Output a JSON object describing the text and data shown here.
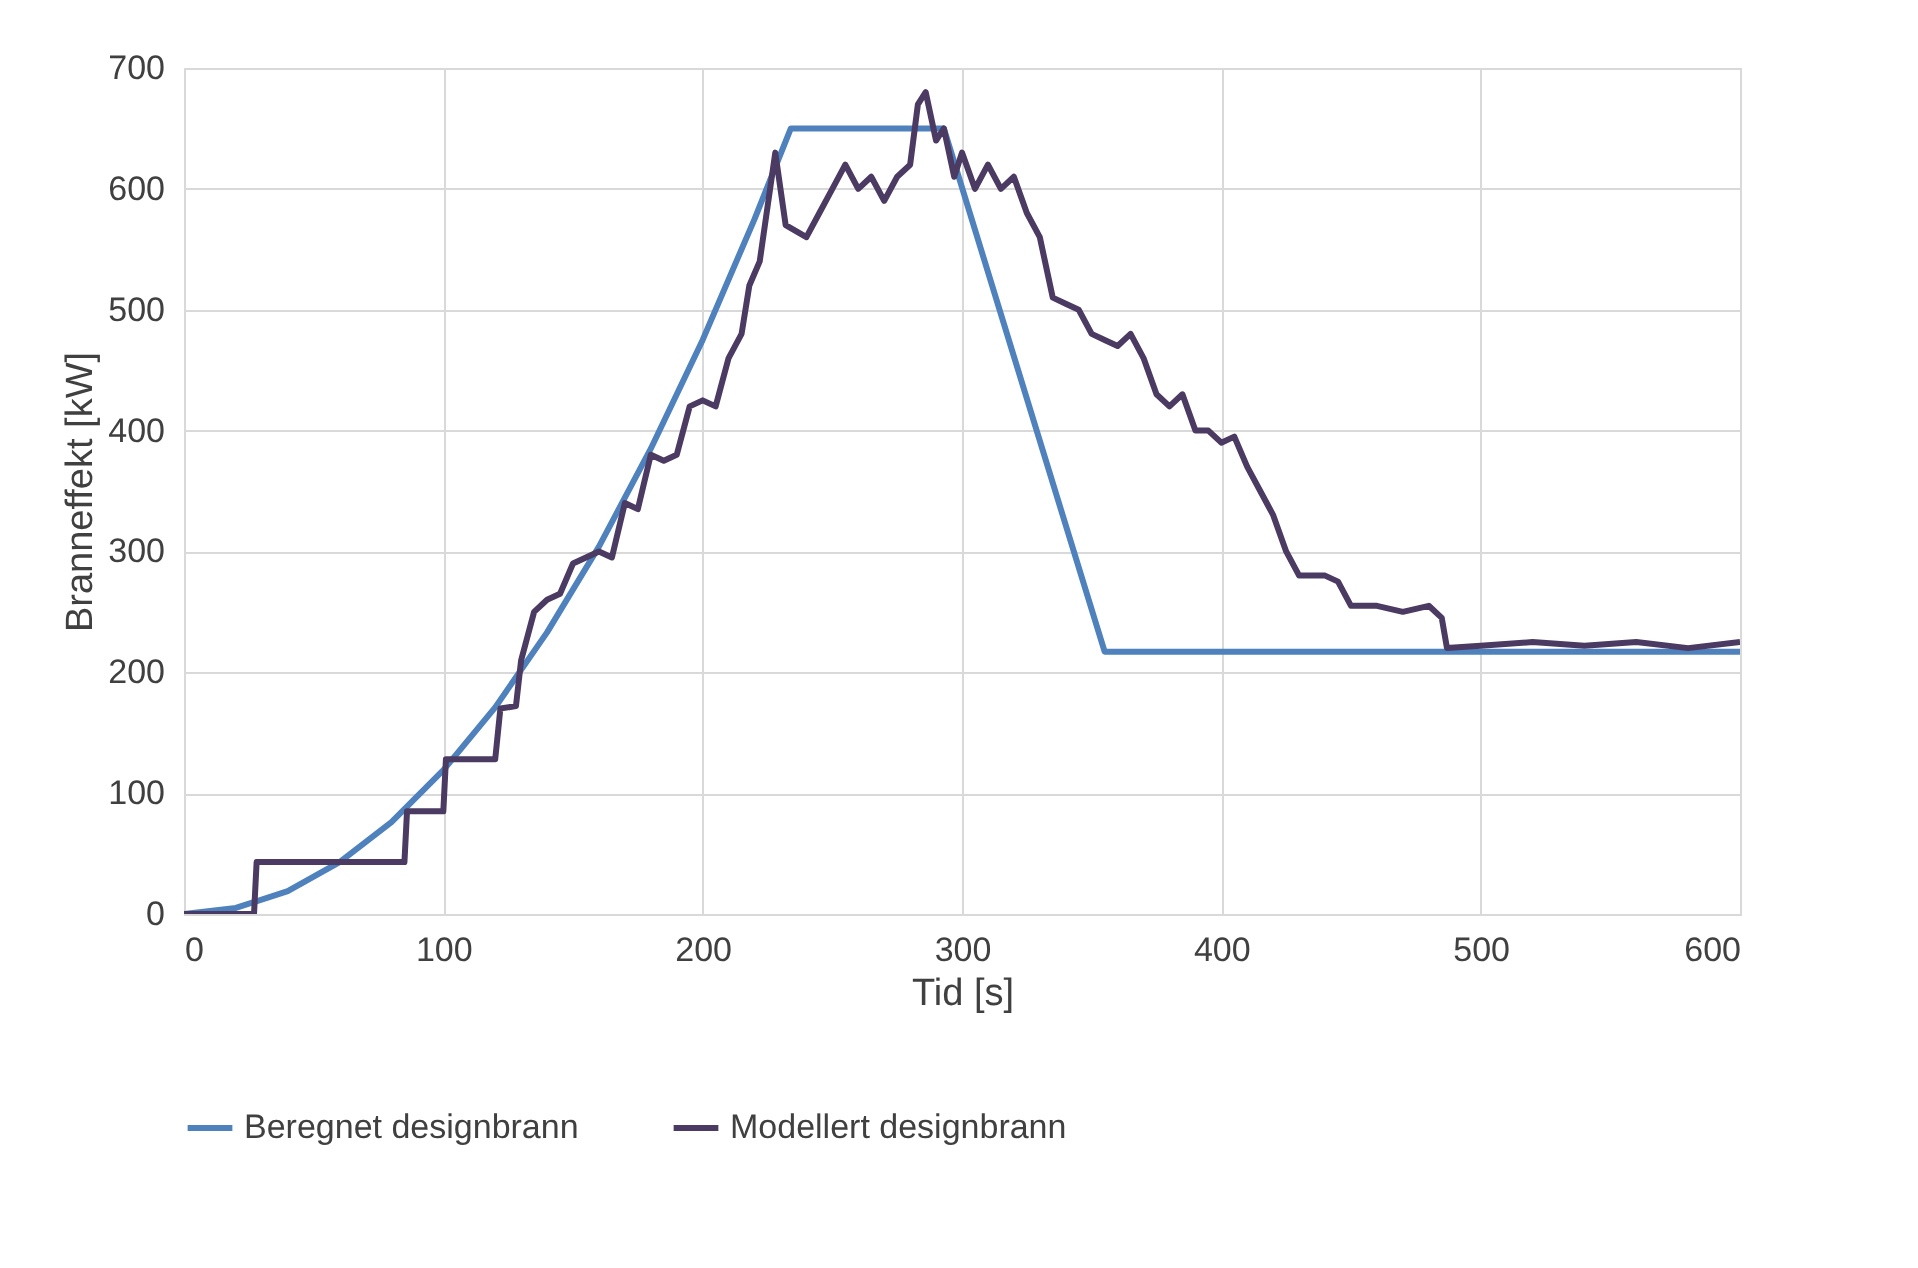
{
  "chart_data": {
    "type": "line",
    "xlabel": "Tid [s]",
    "ylabel": "Branneffekt [kW]",
    "xlim": [
      0,
      600
    ],
    "xticks": [
      0,
      100,
      200,
      300,
      400,
      500,
      600
    ],
    "ylim": [
      0,
      700
    ],
    "yticks": [
      0,
      100,
      200,
      300,
      400,
      500,
      600,
      700
    ],
    "grid": true,
    "legend": "bottom",
    "marker": "none",
    "line_style": "solid",
    "series": [
      {
        "name": "Beregnet designbrann",
        "color": "#4f81bd",
        "x": [
          0,
          20,
          40,
          60,
          80,
          100,
          120,
          140,
          160,
          180,
          200,
          220,
          234,
          293,
          355,
          600
        ],
        "values": [
          0,
          5,
          19,
          43,
          76,
          119,
          171,
          233,
          304,
          385,
          475,
          575,
          650,
          650,
          217,
          217
        ]
      },
      {
        "name": "Modellert designbrann",
        "color": "#4b3a62",
        "x": [
          0,
          27,
          28,
          85,
          86,
          100,
          101,
          120,
          122,
          128,
          130,
          135,
          140,
          145,
          150,
          160,
          165,
          170,
          175,
          180,
          185,
          190,
          195,
          200,
          205,
          210,
          215,
          218,
          222,
          228,
          232,
          240,
          245,
          250,
          255,
          260,
          265,
          270,
          275,
          280,
          283,
          286,
          290,
          293,
          297,
          300,
          305,
          310,
          315,
          320,
          325,
          330,
          335,
          340,
          345,
          350,
          355,
          360,
          365,
          370,
          375,
          380,
          385,
          390,
          395,
          400,
          405,
          410,
          415,
          420,
          425,
          430,
          440,
          445,
          450,
          460,
          470,
          480,
          485,
          487,
          500,
          520,
          540,
          560,
          580,
          600
        ],
        "values": [
          0,
          0,
          43,
          43,
          85,
          85,
          128,
          128,
          170,
          172,
          210,
          250,
          260,
          265,
          290,
          300,
          295,
          340,
          335,
          380,
          375,
          380,
          420,
          425,
          420,
          460,
          480,
          520,
          540,
          630,
          570,
          560,
          580,
          600,
          620,
          600,
          610,
          590,
          610,
          620,
          670,
          680,
          640,
          650,
          610,
          630,
          600,
          620,
          600,
          610,
          580,
          560,
          510,
          505,
          500,
          480,
          475,
          470,
          480,
          460,
          430,
          420,
          430,
          400,
          400,
          390,
          395,
          370,
          350,
          330,
          300,
          280,
          280,
          275,
          255,
          255,
          250,
          255,
          245,
          220,
          222,
          225,
          222,
          225,
          220,
          225
        ]
      }
    ]
  }
}
